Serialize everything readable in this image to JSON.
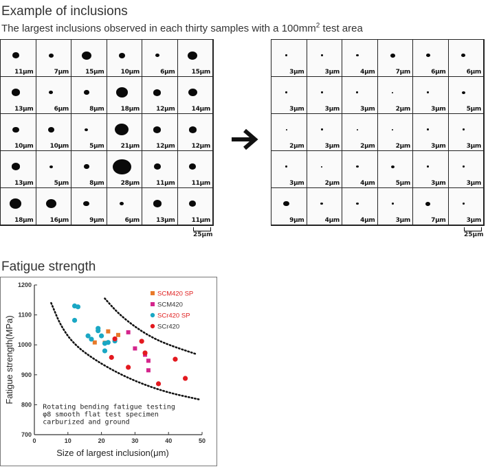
{
  "sections": {
    "inclusions_title": "Example of inclusions",
    "inclusions_subtitle_pre": "The largest inclusions observed in each thirty samples with a 100mm",
    "inclusions_subtitle_sup": "2",
    "inclusions_subtitle_post": " test area",
    "fatigue_title": "Fatigue strength"
  },
  "grids": {
    "before": {
      "labels": [
        "11μm",
        "7μm",
        "15μm",
        "10μm",
        "6μm",
        "15μm",
        "13μm",
        "6μm",
        "8μm",
        "18μm",
        "12μm",
        "14μm",
        "10μm",
        "10μm",
        "5μm",
        "21μm",
        "12μm",
        "12μm",
        "13μm",
        "5μm",
        "8μm",
        "28μm",
        "11μm",
        "11μm",
        "18μm",
        "16μm",
        "9μm",
        "6μm",
        "13μm",
        "11μm"
      ],
      "sizes": [
        11,
        7,
        15,
        10,
        6,
        15,
        13,
        6,
        8,
        18,
        12,
        14,
        10,
        10,
        5,
        21,
        12,
        12,
        13,
        5,
        8,
        28,
        11,
        11,
        18,
        16,
        9,
        6,
        13,
        11
      ]
    },
    "after": {
      "labels": [
        "3μm",
        "3μm",
        "4μm",
        "7μm",
        "6μm",
        "6μm",
        "3μm",
        "3μm",
        "3μm",
        "2μm",
        "3μm",
        "5μm",
        "2μm",
        "3μm",
        "2μm",
        "2μm",
        "3μm",
        "3μm",
        "3μm",
        "2μm",
        "4μm",
        "5μm",
        "3μm",
        "3μm",
        "9μm",
        "4μm",
        "4μm",
        "3μm",
        "7μm",
        "3μm"
      ],
      "sizes": [
        3,
        3,
        4,
        7,
        6,
        6,
        3,
        3,
        3,
        2,
        3,
        5,
        2,
        3,
        2,
        2,
        3,
        3,
        3,
        2,
        4,
        5,
        3,
        3,
        9,
        4,
        4,
        3,
        7,
        3
      ]
    },
    "scale_label": "25μm"
  },
  "arrow_icon": "right-arrow-icon",
  "chart_data": {
    "type": "scatter",
    "xlabel": "Size of largest inclusion(μm)",
    "ylabel": "Fatigue strength(MPa)",
    "xlim": [
      0,
      50
    ],
    "ylim": [
      700,
      1200
    ],
    "xticks": [
      0,
      10,
      20,
      30,
      40,
      50
    ],
    "yticks": [
      700,
      800,
      900,
      1000,
      1100,
      1200
    ],
    "grid": false,
    "legend_position": "top-right",
    "annotation": [
      "Rotating bending fatigue testing",
      "φ8 smooth flat test specimen",
      "carburized and ground"
    ],
    "series": [
      {
        "name": "SCM420 SP",
        "marker": "square",
        "color": "#e87a2a",
        "label_color": "#e02020",
        "points": [
          [
            18,
            1008
          ],
          [
            21,
            1007
          ],
          [
            22,
            1045
          ],
          [
            25,
            1033
          ]
        ]
      },
      {
        "name": "SCM420",
        "marker": "square",
        "color": "#d4258c",
        "label_color": "#333333",
        "points": [
          [
            28,
            1042
          ],
          [
            30,
            988
          ],
          [
            33,
            967
          ],
          [
            34,
            947
          ],
          [
            34,
            915
          ]
        ]
      },
      {
        "name": "SCr420 SP",
        "marker": "circle",
        "color": "#1aa7c4",
        "label_color": "#e02020",
        "points": [
          [
            12,
            1130
          ],
          [
            13,
            1127
          ],
          [
            12,
            1082
          ],
          [
            19,
            1055
          ],
          [
            19,
            1047
          ],
          [
            20,
            1030
          ],
          [
            16,
            1030
          ],
          [
            17,
            1019
          ],
          [
            21,
            1005
          ],
          [
            21,
            980
          ],
          [
            22,
            1008
          ],
          [
            24,
            1013
          ]
        ]
      },
      {
        "name": "SCr420",
        "marker": "circle",
        "color": "#e3191f",
        "label_color": "#333333",
        "points": [
          [
            23,
            958
          ],
          [
            24,
            1020
          ],
          [
            28,
            925
          ],
          [
            32,
            1012
          ],
          [
            33,
            973
          ],
          [
            37,
            870
          ],
          [
            42,
            952
          ],
          [
            45,
            888
          ]
        ]
      }
    ],
    "bounds": {
      "upper": [
        [
          21,
          1155
        ],
        [
          25,
          1105
        ],
        [
          30,
          1060
        ],
        [
          35,
          1025
        ],
        [
          40,
          1000
        ],
        [
          48,
          970
        ]
      ],
      "lower": [
        [
          5,
          1140
        ],
        [
          8,
          1060
        ],
        [
          12,
          1000
        ],
        [
          18,
          950
        ],
        [
          25,
          905
        ],
        [
          32,
          870
        ],
        [
          40,
          840
        ],
        [
          49,
          818
        ]
      ]
    }
  }
}
